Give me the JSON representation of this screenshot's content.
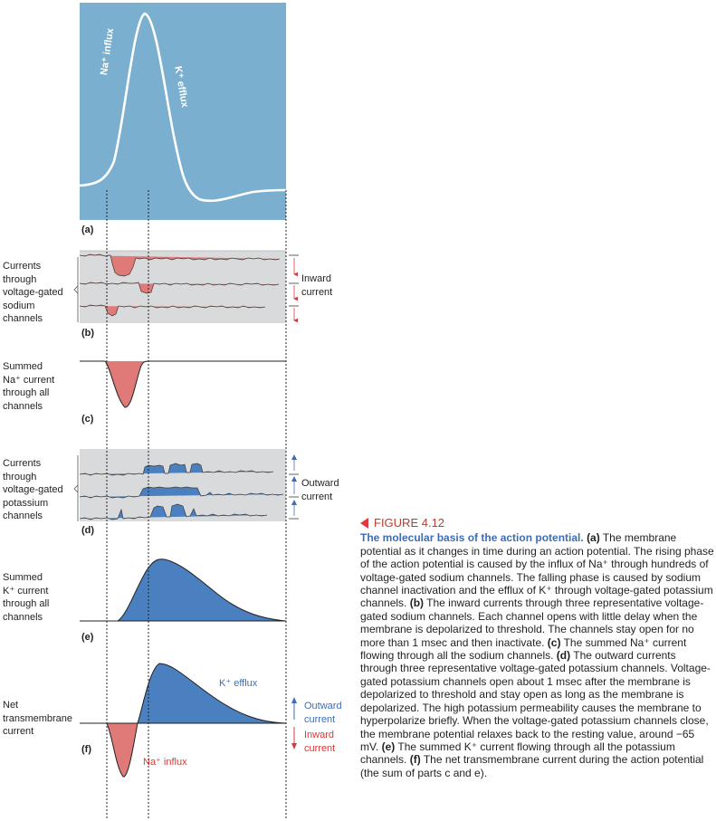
{
  "panels": {
    "a": {
      "label": "(a)",
      "na_influx": "Na⁺ influx",
      "k_efflux": "K⁺ efflux"
    },
    "b": {
      "label": "(b)",
      "side_label": "Currents\nthrough\nvoltage-gated\nsodium\nchannels",
      "arrow_label": "Inward\ncurrent"
    },
    "c": {
      "label": "(c)",
      "side_label": "Summed\nNa⁺ current\nthrough all\nchannels"
    },
    "d": {
      "label": "(d)",
      "side_label": "Currents\nthrough\nvoltage-gated\npotassium\nchannels",
      "arrow_label": "Outward\ncurrent"
    },
    "e": {
      "label": "(e)",
      "side_label": "Summed\nK⁺ current\nthrough all\nchannels"
    },
    "f": {
      "label": "(f)",
      "side_label": "Net\ntransmembrane\ncurrent",
      "k_efflux": "K⁺ efflux",
      "na_influx": "Na⁺ influx",
      "outward": "Outward\ncurrent",
      "inward": "Inward\ncurrent"
    }
  },
  "caption": {
    "figure_number": "FIGURE 4.12",
    "title": "The molecular basis of the action potential.",
    "body": [
      {
        "tag": "(a)",
        "text": " The membrane potential as it changes in time during an action potential. The rising phase of the action potential is caused by the influx of Na⁺ through hundreds of voltage-gated sodium channels. The falling phase is caused by sodium channel inactivation and the efflux of K⁺ through voltage-gated potassium channels. "
      },
      {
        "tag": "(b)",
        "text": " The inward currents through three representative voltage-gated sodium channels. Each channel opens with little delay when the membrane is depolarized to threshold. The channels stay open for no more than 1 msec and then inactivate. "
      },
      {
        "tag": "(c)",
        "text": " The summed Na⁺ current flowing through all the sodium channels. "
      },
      {
        "tag": "(d)",
        "text": " The outward currents through three representative voltage-gated potassium channels. Voltage-gated potassium channels open about 1 msec after the membrane is depolarized to threshold and stay open as long as the membrane is depolarized. The high potassium permeability causes the membrane to hyperpolarize briefly. When the voltage-gated potassium channels close, the membrane potential relaxes back to the resting value, around −65 mV. "
      },
      {
        "tag": "(e)",
        "text": " The summed K⁺ current flowing through all the potassium channels. "
      },
      {
        "tag": "(f)",
        "text": " The net transmembrane current during the action potential (the sum of parts c and e)."
      }
    ]
  },
  "colors": {
    "panel_a_bg": "#7aafd0",
    "na_fill": "#e07a78",
    "k_fill": "#4a80bf",
    "trace_bg": "#d9dadb",
    "caption_accent": "#3d6eb4",
    "figure_red": "#d43b3b"
  }
}
